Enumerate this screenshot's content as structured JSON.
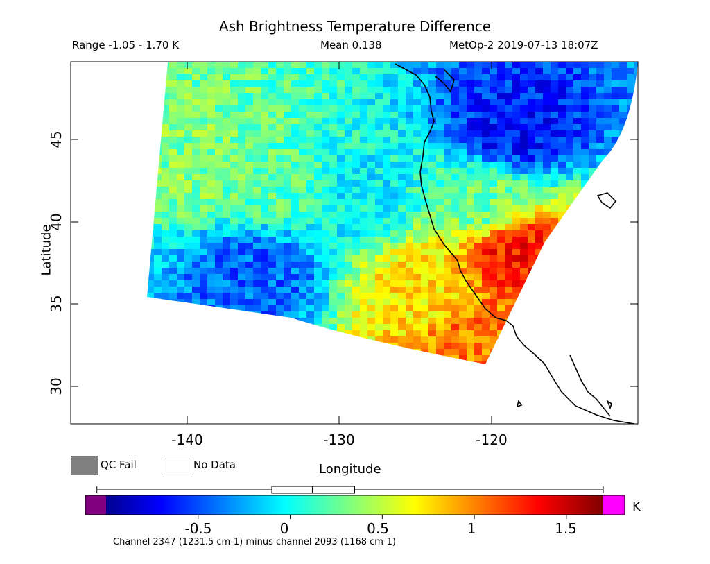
{
  "header": {
    "title": "Ash Brightness Temperature Difference",
    "range": "Range -1.05 - 1.70 K",
    "mean": "Mean 0.138",
    "satellite_time": "MetOp-2 2019-07-13 18:07Z"
  },
  "axes": {
    "xlabel": "Longitude",
    "ylabel": "Latitude",
    "x_ticks": [
      "-140",
      "-130",
      "-120"
    ],
    "y_ticks": [
      "30",
      "35",
      "40",
      "45"
    ]
  },
  "legend": {
    "qc_fail": "QC Fail",
    "no_data": "No Data",
    "qc_color": "#808080"
  },
  "colorbar": {
    "ticks": [
      "-0.5",
      "0",
      "0.5",
      "1",
      "1.5"
    ],
    "unit": "K",
    "under_color": "#800080",
    "over_color": "#ff00ff",
    "caption": "Channel 2347 (1231.5 cm-1) minus channel 2093 (1168 cm-1)"
  },
  "chart_data": {
    "type": "heatmap",
    "title": "Ash Brightness Temperature Difference",
    "xlabel": "Longitude",
    "ylabel": "Latitude",
    "xlim": [
      -147,
      -110
    ],
    "ylim": [
      27.7,
      50.4
    ],
    "x_ticks": [
      -140,
      -130,
      -120
    ],
    "y_ticks": [
      30,
      35,
      40,
      45
    ],
    "colorbar_range": [
      -1.0,
      1.7
    ],
    "colorbar_ticks": [
      -0.5,
      0,
      0.5,
      1,
      1.5
    ],
    "value_range": [
      -1.05,
      1.7
    ],
    "mean": 0.138,
    "units": "K",
    "boxplot": {
      "min": -1.05,
      "q1": -0.1,
      "median": 0.12,
      "q3": 0.35,
      "max": 1.7
    },
    "regions": [
      {
        "lon": -139,
        "lat": 44,
        "value": 0.35
      },
      {
        "lon": -134,
        "lat": 43,
        "value": 0.25
      },
      {
        "lon": -128,
        "lat": 42,
        "value": 0.0
      },
      {
        "lon": -135,
        "lat": 37,
        "value": -0.4
      },
      {
        "lon": -118,
        "lat": 46,
        "value": -0.6
      },
      {
        "lon": -118,
        "lat": 38.5,
        "value": 1.3
      },
      {
        "lon": -120.5,
        "lat": 33.5,
        "value": 1.05
      },
      {
        "lon": -124,
        "lat": 36,
        "value": 0.75
      },
      {
        "lon": -120,
        "lat": 41.5,
        "value": 0.3
      }
    ]
  }
}
